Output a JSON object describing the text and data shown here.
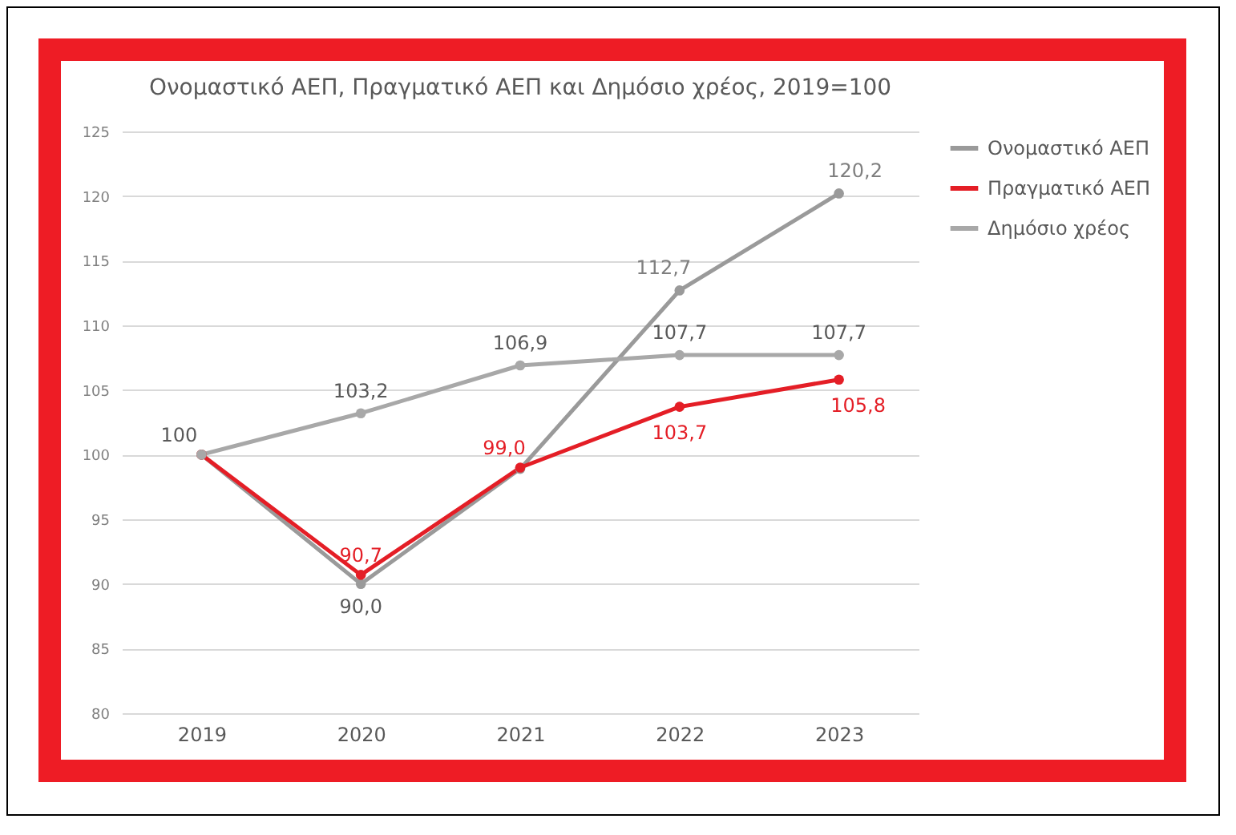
{
  "chart_data": {
    "type": "line",
    "title": "Ονομαστικό ΑΕΠ, Πραγματικό ΑΕΠ και Δημόσιο χρέος, 2019=100",
    "categories": [
      "2019",
      "2020",
      "2021",
      "2022",
      "2023"
    ],
    "series": [
      {
        "name": "Ονομαστικό ΑΕΠ",
        "color": "#9a9a9a",
        "values": [
          100,
          90.0,
          98.9,
          112.7,
          120.2
        ],
        "value_labels": [
          "100",
          "90,0",
          null,
          "112,7",
          "120,2"
        ]
      },
      {
        "name": "Πραγματικό ΑΕΠ",
        "color": "#e41e26",
        "values": [
          100,
          90.7,
          99.0,
          103.7,
          105.8
        ],
        "value_labels": [
          null,
          "90,7",
          "99,0",
          "103,7",
          "105,8"
        ]
      },
      {
        "name": "Δημόσιο χρέος",
        "color": "#a8a8a8",
        "values": [
          100,
          103.2,
          106.9,
          107.7,
          107.7
        ],
        "value_labels": [
          null,
          "103,2",
          "106,9",
          "107,7",
          "107,7"
        ]
      }
    ],
    "ylim": [
      80,
      125
    ],
    "yticks": [
      80,
      85,
      90,
      95,
      100,
      105,
      110,
      115,
      120,
      125
    ],
    "grid": "y",
    "legend": "right",
    "marker": "circle",
    "line_style": "solid"
  }
}
